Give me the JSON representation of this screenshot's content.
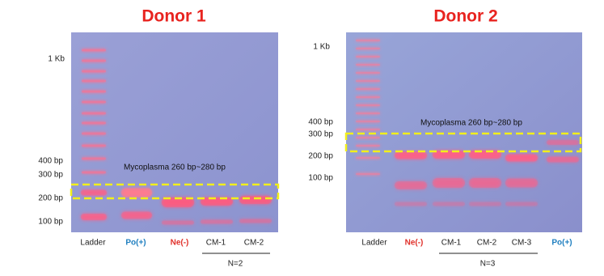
{
  "panels": [
    {
      "title": "Donor 1",
      "markers": [
        "1 Kb",
        "400 bp",
        "300 bp",
        "200 bp",
        "100 bp"
      ],
      "annotation": "Mycoplasma 260 bp~280 bp",
      "lanes": [
        "Ladder",
        "Po(+)",
        "Ne(-)",
        "CM-1",
        "CM-2"
      ],
      "group_label": "N=2"
    },
    {
      "title": "Donor 2",
      "markers": [
        "1 Kb",
        "400 bp",
        "300 bp",
        "200 bp",
        "100 bp"
      ],
      "annotation": "Mycoplasma 260 bp~280 bp",
      "lanes": [
        "Ladder",
        "Ne(-)",
        "CM-1",
        "CM-2",
        "CM-3",
        "Po(+)"
      ],
      "group_label": "N=3"
    }
  ]
}
